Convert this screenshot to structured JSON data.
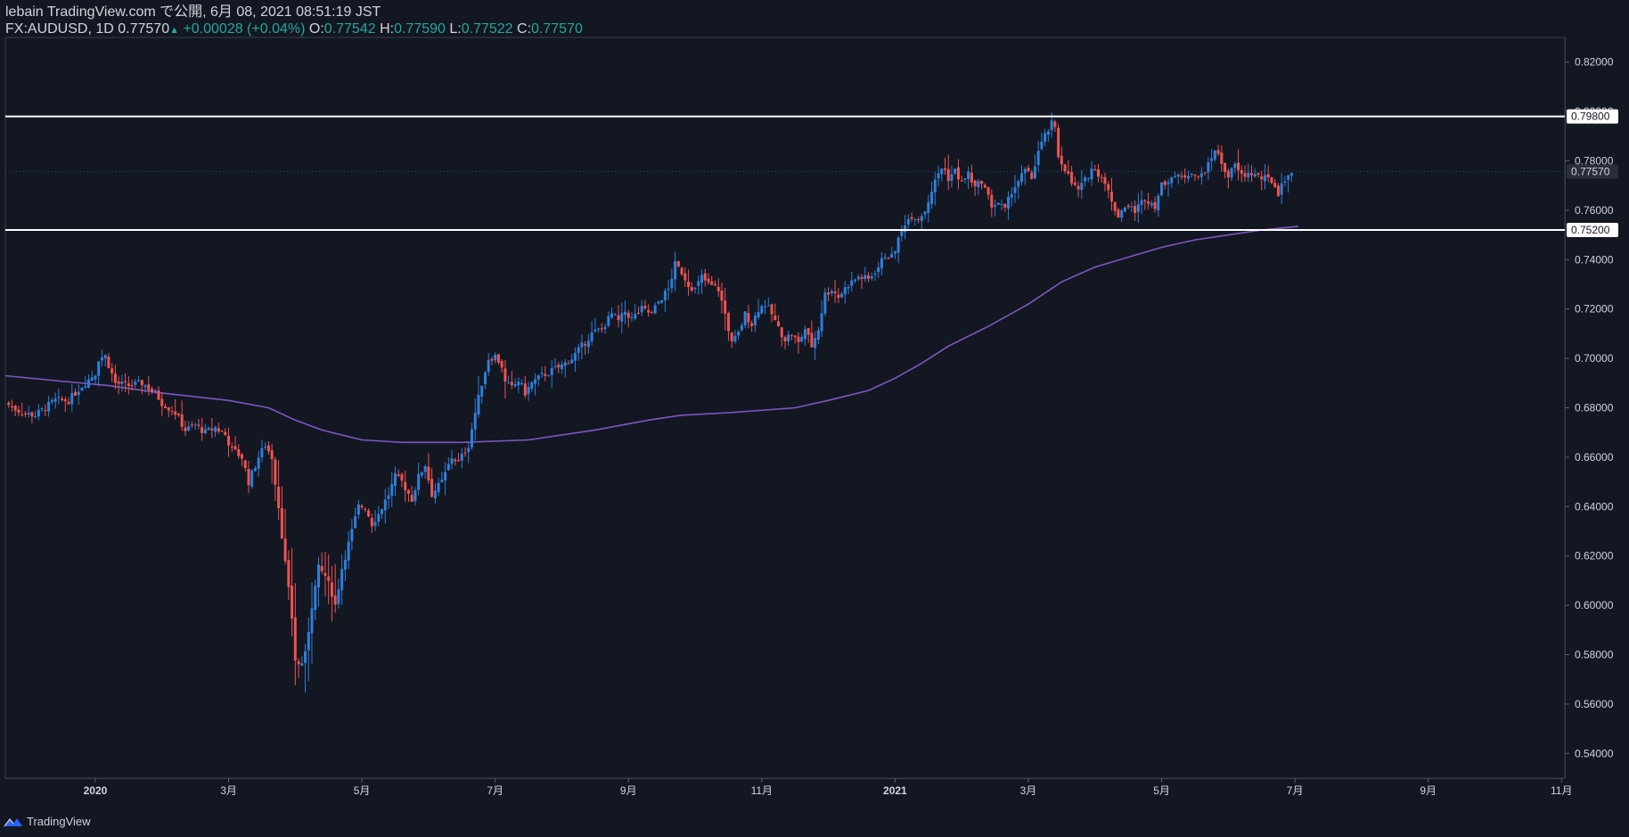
{
  "header": {
    "line1": "lebain TradingView.com で公開, 6月 08, 2021 08:51:19 JST",
    "symbol": "FX:AUDUSD, 1D",
    "last": "0.77570",
    "change": "+0.00028 (+0.04%)",
    "o_label": "O:",
    "o_value": "0.77542",
    "h_label": "H:",
    "h_value": "0.77590",
    "l_label": "L:",
    "l_value": "0.77522",
    "c_label": "C:",
    "c_value": "0.77570"
  },
  "footer": {
    "brand": "TradingView",
    "icon": "tradingview-logo-icon"
  },
  "colors": {
    "bg": "#131722",
    "up": "#2f7fd9",
    "down": "#ef5350",
    "ma": "#7e57c2",
    "grid": "#363c4e",
    "hline": "#ffffff"
  },
  "chart_data": {
    "type": "candlestick",
    "symbol": "FX:AUDUSD",
    "interval": "1D",
    "ylim": [
      0.53,
      0.83
    ],
    "y_ticks": [
      "0.54000",
      "0.56000",
      "0.58000",
      "0.60000",
      "0.62000",
      "0.64000",
      "0.66000",
      "0.68000",
      "0.70000",
      "0.72000",
      "0.74000",
      "0.76000",
      "0.78000",
      "0.80000",
      "0.82000"
    ],
    "x_ticks": [
      {
        "label": "2020",
        "month": 0,
        "year": true
      },
      {
        "label": "3月",
        "month": 2
      },
      {
        "label": "5月",
        "month": 4
      },
      {
        "label": "7月",
        "month": 6
      },
      {
        "label": "9月",
        "month": 8
      },
      {
        "label": "11月",
        "month": 10
      },
      {
        "label": "2021",
        "month": 12,
        "year": true
      },
      {
        "label": "3月",
        "month": 14
      },
      {
        "label": "5月",
        "month": 16
      },
      {
        "label": "7月",
        "month": 18
      },
      {
        "label": "9月",
        "month": 20
      },
      {
        "label": "11月",
        "month": 22
      }
    ],
    "xlim_months": [
      -1.35,
      22.05
    ],
    "horizontal_lines": [
      {
        "price": 0.798,
        "label": "0.79800"
      },
      {
        "price": 0.752,
        "label": "0.75200"
      }
    ],
    "last_price": {
      "price": 0.7757,
      "label": "0.77570"
    },
    "close_path": [
      [
        -1.35,
        0.682
      ],
      [
        -1.1,
        0.678
      ],
      [
        -0.9,
        0.677
      ],
      [
        -0.6,
        0.683
      ],
      [
        -0.4,
        0.683
      ],
      [
        -0.2,
        0.689
      ],
      [
        0.0,
        0.694
      ],
      [
        0.05,
        0.7
      ],
      [
        0.15,
        0.701
      ],
      [
        0.3,
        0.69
      ],
      [
        0.5,
        0.689
      ],
      [
        0.7,
        0.69
      ],
      [
        0.9,
        0.686
      ],
      [
        1.0,
        0.682
      ],
      [
        1.2,
        0.678
      ],
      [
        1.35,
        0.671
      ],
      [
        1.5,
        0.673
      ],
      [
        1.65,
        0.67
      ],
      [
        1.8,
        0.672
      ],
      [
        1.95,
        0.669
      ],
      [
        2.05,
        0.663
      ],
      [
        2.2,
        0.66
      ],
      [
        2.3,
        0.65
      ],
      [
        2.45,
        0.66
      ],
      [
        2.55,
        0.665
      ],
      [
        2.65,
        0.66
      ],
      [
        2.75,
        0.64
      ],
      [
        2.85,
        0.617
      ],
      [
        2.95,
        0.595
      ],
      [
        3.0,
        0.578
      ],
      [
        3.07,
        0.575
      ],
      [
        3.15,
        0.58
      ],
      [
        3.25,
        0.6
      ],
      [
        3.35,
        0.615
      ],
      [
        3.45,
        0.612
      ],
      [
        3.55,
        0.605
      ],
      [
        3.6,
        0.6
      ],
      [
        3.7,
        0.615
      ],
      [
        3.85,
        0.63
      ],
      [
        3.95,
        0.64
      ],
      [
        4.05,
        0.64
      ],
      [
        4.15,
        0.633
      ],
      [
        4.25,
        0.637
      ],
      [
        4.4,
        0.645
      ],
      [
        4.5,
        0.652
      ],
      [
        4.6,
        0.65
      ],
      [
        4.75,
        0.643
      ],
      [
        4.85,
        0.652
      ],
      [
        4.95,
        0.657
      ],
      [
        5.05,
        0.645
      ],
      [
        5.2,
        0.65
      ],
      [
        5.35,
        0.66
      ],
      [
        5.45,
        0.658
      ],
      [
        5.6,
        0.665
      ],
      [
        5.7,
        0.678
      ],
      [
        5.8,
        0.69
      ],
      [
        5.9,
        0.7
      ],
      [
        6.0,
        0.701
      ],
      [
        6.1,
        0.697
      ],
      [
        6.15,
        0.69
      ],
      [
        6.25,
        0.688
      ],
      [
        6.35,
        0.691
      ],
      [
        6.45,
        0.686
      ],
      [
        6.55,
        0.69
      ],
      [
        6.7,
        0.693
      ],
      [
        6.85,
        0.695
      ],
      [
        7.0,
        0.697
      ],
      [
        7.15,
        0.7
      ],
      [
        7.3,
        0.705
      ],
      [
        7.45,
        0.71
      ],
      [
        7.6,
        0.712
      ],
      [
        7.75,
        0.718
      ],
      [
        7.85,
        0.715
      ],
      [
        7.95,
        0.719
      ],
      [
        8.05,
        0.716
      ],
      [
        8.2,
        0.72
      ],
      [
        8.35,
        0.718
      ],
      [
        8.45,
        0.723
      ],
      [
        8.6,
        0.728
      ],
      [
        8.7,
        0.738
      ],
      [
        8.8,
        0.735
      ],
      [
        8.9,
        0.73
      ],
      [
        9.0,
        0.728
      ],
      [
        9.1,
        0.733
      ],
      [
        9.2,
        0.73
      ],
      [
        9.35,
        0.728
      ],
      [
        9.45,
        0.718
      ],
      [
        9.55,
        0.706
      ],
      [
        9.65,
        0.71
      ],
      [
        9.75,
        0.718
      ],
      [
        9.85,
        0.714
      ],
      [
        9.95,
        0.72
      ],
      [
        10.05,
        0.722
      ],
      [
        10.15,
        0.718
      ],
      [
        10.25,
        0.712
      ],
      [
        10.35,
        0.708
      ],
      [
        10.45,
        0.71
      ],
      [
        10.55,
        0.706
      ],
      [
        10.65,
        0.712
      ],
      [
        10.75,
        0.705
      ],
      [
        10.85,
        0.712
      ],
      [
        10.95,
        0.726
      ],
      [
        11.05,
        0.728
      ],
      [
        11.15,
        0.725
      ],
      [
        11.3,
        0.73
      ],
      [
        11.45,
        0.733
      ],
      [
        11.6,
        0.732
      ],
      [
        11.75,
        0.737
      ],
      [
        11.85,
        0.742
      ],
      [
        11.95,
        0.741
      ],
      [
        12.05,
        0.748
      ],
      [
        12.15,
        0.755
      ],
      [
        12.25,
        0.758
      ],
      [
        12.35,
        0.757
      ],
      [
        12.45,
        0.76
      ],
      [
        12.55,
        0.768
      ],
      [
        12.65,
        0.775
      ],
      [
        12.72,
        0.778
      ],
      [
        12.8,
        0.773
      ],
      [
        12.9,
        0.776
      ],
      [
        13.0,
        0.771
      ],
      [
        13.1,
        0.775
      ],
      [
        13.2,
        0.769
      ],
      [
        13.3,
        0.772
      ],
      [
        13.45,
        0.762
      ],
      [
        13.55,
        0.763
      ],
      [
        13.65,
        0.76
      ],
      [
        13.75,
        0.768
      ],
      [
        13.85,
        0.772
      ],
      [
        13.95,
        0.776
      ],
      [
        14.05,
        0.773
      ],
      [
        14.15,
        0.784
      ],
      [
        14.25,
        0.79
      ],
      [
        14.35,
        0.795
      ],
      [
        14.38,
        0.797
      ],
      [
        14.45,
        0.782
      ],
      [
        14.55,
        0.777
      ],
      [
        14.65,
        0.771
      ],
      [
        14.75,
        0.768
      ],
      [
        14.85,
        0.772
      ],
      [
        14.95,
        0.777
      ],
      [
        15.05,
        0.775
      ],
      [
        15.15,
        0.772
      ],
      [
        15.25,
        0.763
      ],
      [
        15.35,
        0.758
      ],
      [
        15.45,
        0.762
      ],
      [
        15.6,
        0.76
      ],
      [
        15.75,
        0.765
      ],
      [
        15.9,
        0.762
      ],
      [
        16.0,
        0.77
      ],
      [
        16.15,
        0.774
      ],
      [
        16.3,
        0.773
      ],
      [
        16.45,
        0.776
      ],
      [
        16.55,
        0.773
      ],
      [
        16.7,
        0.778
      ],
      [
        16.8,
        0.785
      ],
      [
        16.9,
        0.779
      ],
      [
        17.0,
        0.774
      ],
      [
        17.1,
        0.778
      ],
      [
        17.2,
        0.774
      ],
      [
        17.35,
        0.775
      ],
      [
        17.5,
        0.773
      ],
      [
        17.65,
        0.772
      ],
      [
        17.75,
        0.767
      ],
      [
        17.85,
        0.773
      ],
      [
        17.95,
        0.7757
      ]
    ],
    "ma_path": [
      [
        -1.35,
        0.693
      ],
      [
        -0.6,
        0.691
      ],
      [
        0.2,
        0.689
      ],
      [
        1.0,
        0.686
      ],
      [
        2.0,
        0.683
      ],
      [
        2.6,
        0.68
      ],
      [
        3.0,
        0.675
      ],
      [
        3.4,
        0.671
      ],
      [
        4.0,
        0.667
      ],
      [
        4.6,
        0.666
      ],
      [
        5.5,
        0.666
      ],
      [
        6.5,
        0.667
      ],
      [
        7.5,
        0.671
      ],
      [
        8.3,
        0.675
      ],
      [
        8.8,
        0.677
      ],
      [
        9.5,
        0.678
      ],
      [
        10.5,
        0.68
      ],
      [
        11.0,
        0.683
      ],
      [
        11.6,
        0.687
      ],
      [
        12.0,
        0.692
      ],
      [
        12.4,
        0.698
      ],
      [
        12.8,
        0.705
      ],
      [
        13.4,
        0.713
      ],
      [
        14.0,
        0.722
      ],
      [
        14.5,
        0.731
      ],
      [
        15.0,
        0.737
      ],
      [
        15.5,
        0.741
      ],
      [
        16.0,
        0.745
      ],
      [
        16.5,
        0.748
      ],
      [
        17.0,
        0.75
      ],
      [
        17.5,
        0.752
      ],
      [
        18.05,
        0.7535
      ]
    ]
  }
}
